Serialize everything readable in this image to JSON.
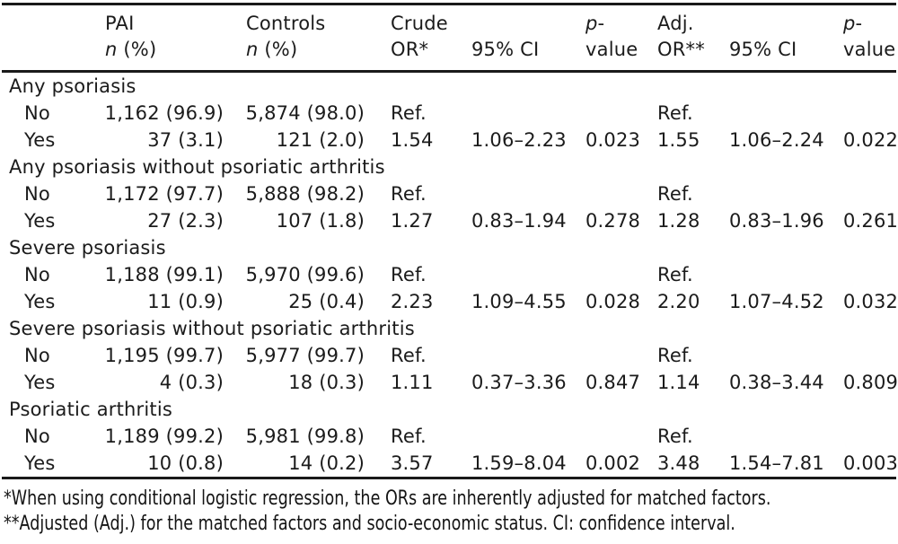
{
  "colors": {
    "rule": "#1a1a1a",
    "text": "#1b1b1b",
    "background": "#ffffff"
  },
  "table": {
    "header": {
      "pai": {
        "l1": "PAI",
        "l2i": "n",
        "l2": " (%)"
      },
      "controls": {
        "l1": "Controls",
        "l2i": "n",
        "l2": " (%)"
      },
      "crude": {
        "l1": "Crude",
        "l2": "OR*"
      },
      "ci1": {
        "l2": "95% CI"
      },
      "p1": {
        "l1i": "p",
        "l1": "-",
        "l2": "value"
      },
      "adj": {
        "l1": "Adj.",
        "l2": "OR**"
      },
      "ci2": {
        "l2": "95% CI"
      },
      "p2": {
        "l1i": "p",
        "l1": "-",
        "l2": "value"
      }
    },
    "sections": [
      {
        "title": "Any psoriasis",
        "rows": [
          {
            "label": "No",
            "pai": "1,162 (96.9)",
            "controls": "5,874 (98.0)",
            "crude": "Ref.",
            "ci1": "",
            "p1": "",
            "adj": "Ref.",
            "ci2": "",
            "p2": ""
          },
          {
            "label": "Yes",
            "pai": "37 (3.1)",
            "controls": "121 (2.0)",
            "crude": "1.54",
            "ci1": "1.06–2.23",
            "p1": "0.023",
            "adj": "1.55",
            "ci2": "1.06–2.24",
            "p2": "0.022"
          }
        ]
      },
      {
        "title": "Any psoriasis without psoriatic arthritis",
        "rows": [
          {
            "label": "No",
            "pai": "1,172 (97.7)",
            "controls": "5,888 (98.2)",
            "crude": "Ref.",
            "ci1": "",
            "p1": "",
            "adj": "Ref.",
            "ci2": "",
            "p2": ""
          },
          {
            "label": "Yes",
            "pai": "27 (2.3)",
            "controls": "107 (1.8)",
            "crude": "1.27",
            "ci1": "0.83–1.94",
            "p1": "0.278",
            "adj": "1.28",
            "ci2": "0.83–1.96",
            "p2": "0.261"
          }
        ]
      },
      {
        "title": "Severe psoriasis",
        "rows": [
          {
            "label": "No",
            "pai": "1,188 (99.1)",
            "controls": "5,970 (99.6)",
            "crude": "Ref.",
            "ci1": "",
            "p1": "",
            "adj": "Ref.",
            "ci2": "",
            "p2": ""
          },
          {
            "label": "Yes",
            "pai": "11 (0.9)",
            "controls": "25 (0.4)",
            "crude": "2.23",
            "ci1": "1.09–4.55",
            "p1": "0.028",
            "adj": "2.20",
            "ci2": "1.07–4.52",
            "p2": "0.032"
          }
        ]
      },
      {
        "title": "Severe psoriasis without psoriatic arthritis",
        "rows": [
          {
            "label": "No",
            "pai": "1,195 (99.7)",
            "controls": "5,977 (99.7)",
            "crude": "Ref.",
            "ci1": "",
            "p1": "",
            "adj": "Ref.",
            "ci2": "",
            "p2": ""
          },
          {
            "label": "Yes",
            "pai": "4 (0.3)",
            "controls": "18 (0.3)",
            "crude": "1.11",
            "ci1": "0.37–3.36",
            "p1": "0.847",
            "adj": "1.14",
            "ci2": "0.38–3.44",
            "p2": "0.809"
          }
        ]
      },
      {
        "title": "Psoriatic arthritis",
        "rows": [
          {
            "label": "No",
            "pai": "1,189 (99.2)",
            "controls": "5,981 (99.8)",
            "crude": "Ref.",
            "ci1": "",
            "p1": "",
            "adj": "Ref.",
            "ci2": "",
            "p2": ""
          },
          {
            "label": "Yes",
            "pai": "10 (0.8)",
            "controls": "14 (0.2)",
            "crude": "3.57",
            "ci1": "1.59–8.04",
            "p1": "0.002",
            "adj": "3.48",
            "ci2": "1.54–7.81",
            "p2": "0.003"
          }
        ]
      }
    ]
  },
  "footnotes": [
    "*When using conditional logistic regression, the ORs are inherently adjusted for matched factors.",
    "**Adjusted (Adj.) for the matched factors and socio-economic status. CI: confidence interval."
  ]
}
